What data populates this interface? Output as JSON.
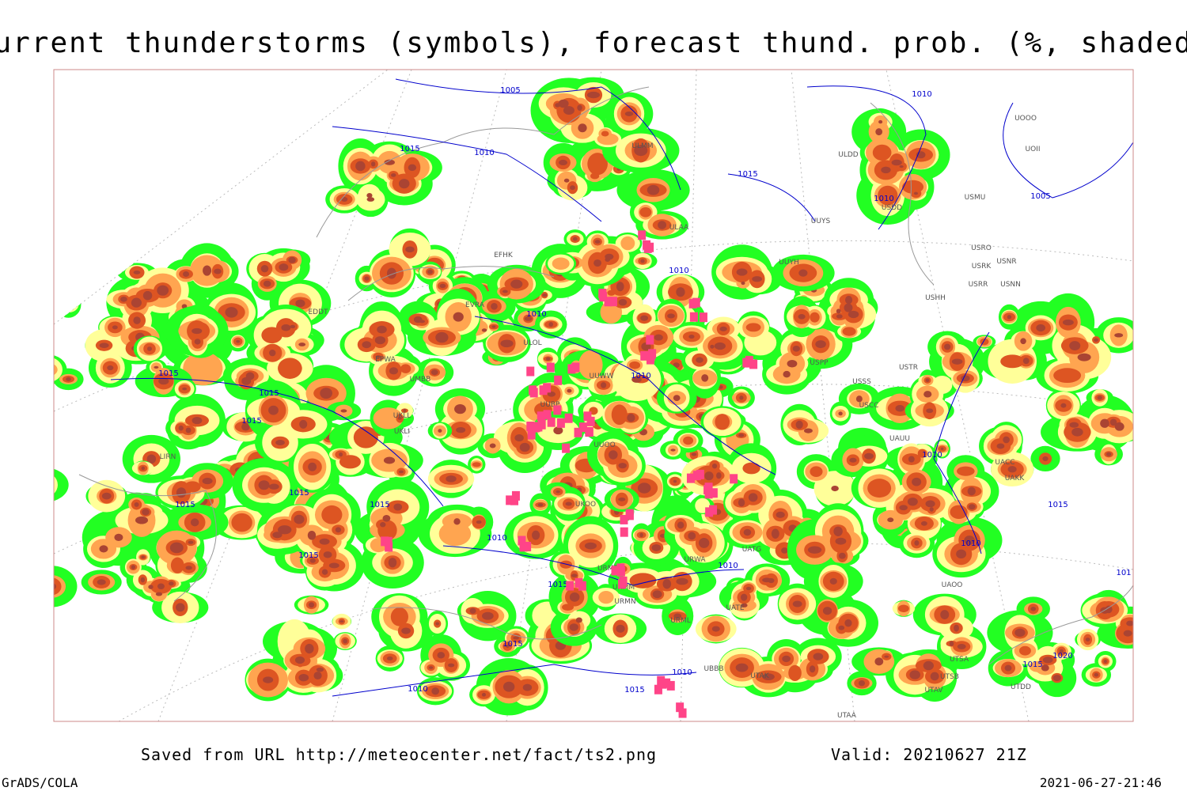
{
  "header": {
    "title": "Current thunderstorms (symbols), forecast thund. prob. (%, shaded)"
  },
  "map": {
    "isobar_labels": [
      "1005",
      "1010",
      "1015",
      "1010",
      "1015",
      "1010",
      "1005",
      "1010",
      "1010",
      "1015",
      "1010",
      "1015",
      "1015",
      "1010",
      "1015",
      "1015",
      "1015",
      "1015",
      "1010",
      "1010",
      "1015",
      "1010",
      "1015",
      "1015",
      "1020",
      "1015",
      "1010",
      "1010",
      "1015",
      "101"
    ],
    "station_labels": [
      "ULMM",
      "ULDD",
      "UOOO",
      "UOII",
      "USDD",
      "USMU",
      "ULAA",
      "UUYS",
      "USRO",
      "USRK",
      "USNR",
      "UUYH",
      "USRR",
      "USNN",
      "EFHK",
      "USHH",
      "EVRA",
      "EDDT",
      "ULOL",
      "EPWA",
      "USPP",
      "USTR",
      "UMBB",
      "UUWW",
      "USSS",
      "UUBP",
      "USCC",
      "UKLL",
      "UKLI",
      "UAUU",
      "LIRN",
      "UUOO",
      "UACC",
      "UAKK",
      "UKOO",
      "URWA",
      "UATG",
      "URMT",
      "URMM",
      "UATE",
      "URMN",
      "URML",
      "UBBB",
      "UTAK",
      "UTSA",
      "UTSB",
      "UTAV",
      "UTDD",
      "UAOO",
      "UTAA"
    ]
  },
  "footer": {
    "source": "Saved from URL http://meteocenter.net/fact/ts2.png",
    "valid": "Valid: 20210627 21Z",
    "software": "GrADS/COLA",
    "timestamp": "2021-06-27-21:46"
  }
}
